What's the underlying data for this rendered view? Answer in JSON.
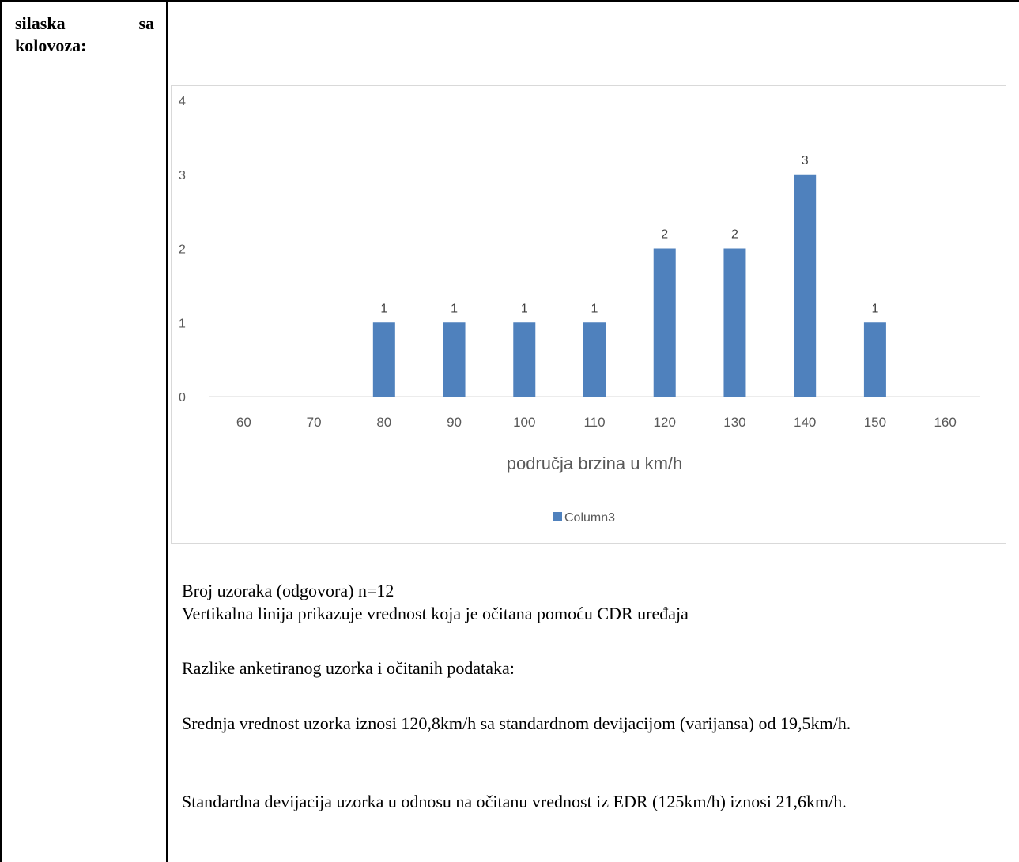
{
  "row_label": {
    "line1_a": "silaska",
    "line1_b": "sa",
    "line2": "kolovoza:"
  },
  "chart_data": {
    "type": "bar",
    "categories": [
      "60",
      "70",
      "80",
      "90",
      "100",
      "110",
      "120",
      "130",
      "140",
      "150",
      "160"
    ],
    "series": [
      {
        "name": "Column3",
        "values": [
          0,
          0,
          1,
          1,
          1,
          1,
          2,
          2,
          3,
          1,
          0
        ]
      }
    ],
    "y_ticks": [
      "0",
      "1",
      "2",
      "3",
      "4"
    ],
    "ylim": [
      0,
      4
    ],
    "xlabel": "područja brzina u km/h",
    "ylabel": "",
    "title": "",
    "legend": "bottom",
    "grid": false,
    "data_labels": true,
    "bar_color": "#4f81bd"
  },
  "paragraphs": {
    "sample_count": "Broj uzoraka (odgovora) n=12",
    "vertical_line": "Vertikalna linija prikazuje vrednost koja je očitana pomoću CDR uređaja",
    "differences": "Razlike anketiranog uzorka i očitanih podataka:",
    "mean": "Srednja vrednost uzorka iznosi 120,8km/h sa standardnom devijacijom (varijansa) od 19,5km/h.",
    "std_dev": "Standardna devijacija uzorka u odnosu na očitanu vrednost iz EDR (125km/h) iznosi 21,6km/h."
  }
}
